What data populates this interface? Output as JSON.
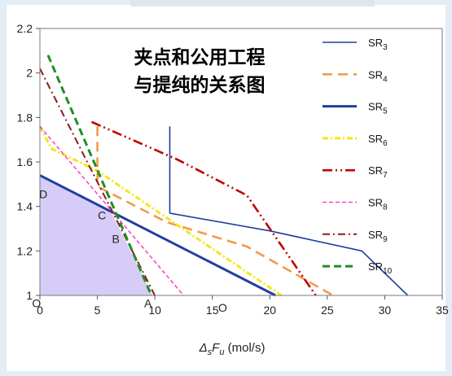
{
  "chart_data": {
    "type": "line",
    "title_lines": [
      "夹点和公用工程",
      "与提纯的关系图"
    ],
    "xlabel": "ΔsFu (mol/s)",
    "ylabel": "",
    "xlim": [
      0,
      35
    ],
    "ylim": [
      1,
      2.2
    ],
    "xticks": [
      "0",
      "5",
      "10",
      "15",
      "20",
      "25",
      "30",
      "35"
    ],
    "yticks": [
      "1",
      "1.2",
      "1.4",
      "1.6",
      "1.8",
      "2",
      "2.2"
    ],
    "grid": false,
    "legend_position": "top-right",
    "series": [
      {
        "name": "SR3",
        "color": "#1f3fa0",
        "dash": "",
        "width": 1.6,
        "points": [
          [
            11.3,
            1.76
          ],
          [
            11.3,
            1.37
          ],
          [
            20,
            1.29
          ],
          [
            28,
            1.2
          ],
          [
            32,
            1.0
          ]
        ]
      },
      {
        "name": "SR4",
        "color": "#f39a4a",
        "dash": "12,7",
        "width": 2.6,
        "points": [
          [
            5,
            1.76
          ],
          [
            5,
            1.49
          ],
          [
            11,
            1.33
          ],
          [
            18,
            1.22
          ],
          [
            25.5,
            1.0
          ]
        ]
      },
      {
        "name": "SR5",
        "color": "#1f3fa0",
        "dash": "",
        "width": 3,
        "points": [
          [
            0,
            1.54
          ],
          [
            20.5,
            1.0
          ]
        ]
      },
      {
        "name": "SR6",
        "color": "#f2e81a",
        "dash": "7,3,2,3",
        "width": 3,
        "points": [
          [
            0,
            1.76
          ],
          [
            1,
            1.66
          ],
          [
            5,
            1.56
          ],
          [
            21,
            1.0
          ]
        ]
      },
      {
        "name": "SR7",
        "color": "#c00000",
        "dash": "12,4,2,4,2,4",
        "width": 2.6,
        "points": [
          [
            4.5,
            1.78
          ],
          [
            12,
            1.61
          ],
          [
            18,
            1.45
          ],
          [
            24,
            1.0
          ]
        ]
      },
      {
        "name": "SR8",
        "color": "#ff44cc",
        "dash": "5,3",
        "width": 1.6,
        "points": [
          [
            0,
            1.76
          ],
          [
            12.5,
            1.0
          ]
        ]
      },
      {
        "name": "SR9",
        "color": "#8b1a1a",
        "dash": "9,4,2,4",
        "width": 2,
        "points": [
          [
            0,
            2.02
          ],
          [
            10,
            1.0
          ]
        ]
      },
      {
        "name": "SR10",
        "color": "#1e8f1e",
        "dash": "9,5",
        "width": 3,
        "points": [
          [
            0.7,
            2.08
          ],
          [
            9.7,
            1.0
          ]
        ]
      }
    ],
    "shaded_region": {
      "color": "#d6ccf7",
      "points": [
        [
          0,
          1.0
        ],
        [
          0,
          1.54
        ],
        [
          6.2,
          1.375
        ],
        [
          9.8,
          1.0
        ]
      ]
    },
    "annotations": [
      {
        "text": "D",
        "x": 0.3,
        "y": 1.455
      },
      {
        "text": "C",
        "x": 5.4,
        "y": 1.36
      },
      {
        "text": "B",
        "x": 6.6,
        "y": 1.255
      },
      {
        "text": "A",
        "x": 9.4,
        "y": 0.965
      },
      {
        "text": "O",
        "x": -0.3,
        "y": 0.965
      },
      {
        "text": "O",
        "x": 15.9,
        "y": 0.945
      }
    ]
  }
}
